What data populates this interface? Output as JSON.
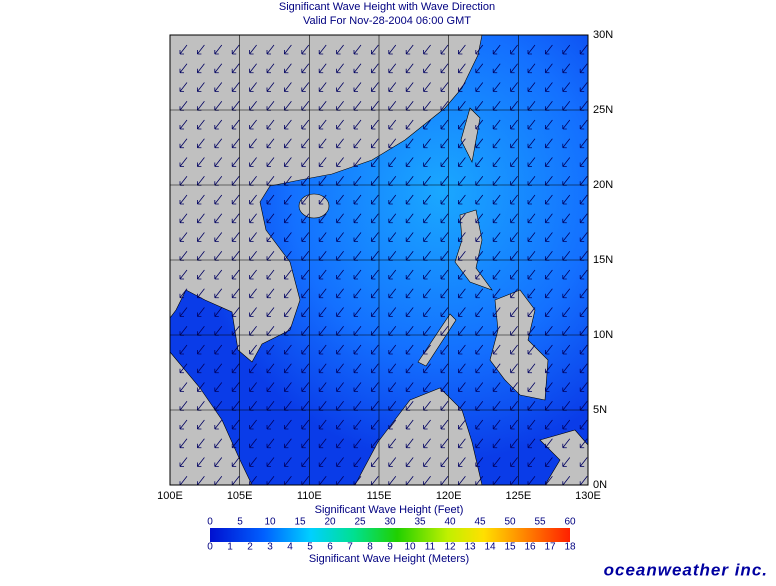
{
  "title": [
    "Significant Wave Height with Wave Direction",
    "Valid For Nov-28-2004 06:00 GMT"
  ],
  "map": {
    "lon_labels": [
      "100E",
      "105E",
      "110E",
      "115E",
      "120E",
      "125E",
      "130E"
    ],
    "lat_labels": [
      "30N",
      "25N",
      "20N",
      "15N",
      "10N",
      "5N",
      "0N"
    ]
  },
  "colorbar": {
    "feet_ticks": [
      0,
      5,
      10,
      15,
      20,
      25,
      30,
      35,
      40,
      45,
      50,
      55,
      60
    ],
    "feet_label": "Significant Wave Height (Feet)",
    "meters_ticks": [
      0,
      1,
      2,
      3,
      4,
      5,
      6,
      7,
      8,
      9,
      10,
      11,
      12,
      13,
      14,
      15,
      16,
      17,
      18
    ],
    "meters_label": "Significant Wave Height (Meters)"
  },
  "logo": "oceanweather inc."
}
